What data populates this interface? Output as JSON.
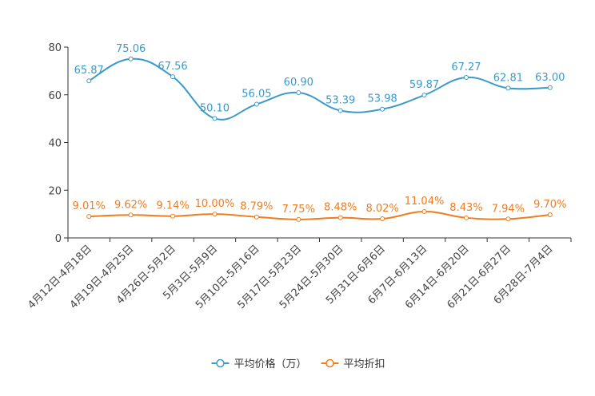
{
  "chart_data": {
    "type": "line",
    "title": "",
    "xlabel": "",
    "ylabel": "",
    "ylim": [
      0,
      80
    ],
    "yticks": [
      0,
      20,
      40,
      60,
      80
    ],
    "categories": [
      "4月12日-4月18日",
      "4月19日-4月25日",
      "4月26日-5月2日",
      "5月3日-5月9日",
      "5月10日-5月16日",
      "5月17日-5月23日",
      "5月24日-5月30日",
      "5月31日-6月6日",
      "6月7日-6月13日",
      "6月14日-6月20日",
      "6月21日-6月27日",
      "6月28日-7月4日"
    ],
    "series": [
      {
        "name": "平均价格（万）",
        "color": "#3a9ac9",
        "values": [
          65.87,
          75.06,
          67.56,
          50.1,
          56.05,
          60.9,
          53.39,
          53.98,
          59.87,
          67.27,
          62.81,
          63.0
        ],
        "labels": [
          "65.87",
          "75.06",
          "67.56",
          "50.10",
          "56.05",
          "60.90",
          "53.39",
          "53.98",
          "59.87",
          "67.27",
          "62.81",
          "63.00"
        ]
      },
      {
        "name": "平均折扣",
        "color": "#f07c1d",
        "values": [
          9.01,
          9.62,
          9.14,
          10.0,
          8.79,
          7.75,
          8.48,
          8.02,
          11.04,
          8.43,
          7.94,
          9.7
        ],
        "labels": [
          "9.01%",
          "9.62%",
          "9.14%",
          "10.00%",
          "8.79%",
          "7.75%",
          "8.48%",
          "8.02%",
          "11.04%",
          "8.43%",
          "7.94%",
          "9.70%"
        ]
      }
    ],
    "legend_position": "bottom-center"
  }
}
